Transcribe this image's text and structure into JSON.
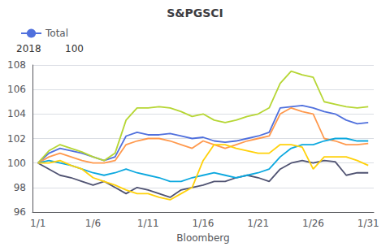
{
  "chart_data": {
    "type": "line",
    "title": "S&PGSCI",
    "xlabel": "Bloomberg",
    "annotations": [
      "2018",
      "100"
    ],
    "categories": [
      "1/1",
      null,
      null,
      null,
      null,
      "1/6",
      null,
      null,
      null,
      null,
      "1/11",
      null,
      null,
      null,
      null,
      "1/16",
      null,
      null,
      null,
      null,
      "1/21",
      null,
      null,
      null,
      null,
      "1/26",
      null,
      null,
      null,
      null,
      "1/31"
    ],
    "series": [
      {
        "name": "Total",
        "values": [
          100,
          100.8,
          101.2,
          101.0,
          100.8,
          100.5,
          100.2,
          100.5,
          102.2,
          102.5,
          102.3,
          102.3,
          102.4,
          102.2,
          102.0,
          102.1,
          101.8,
          101.7,
          101.8,
          102.0,
          102.2,
          102.5,
          104.5,
          104.6,
          104.7,
          104.5,
          104.2,
          104.0,
          103.5,
          103.2,
          103.3
        ]
      },
      {
        "values": [
          100,
          101.0,
          101.5,
          101.2,
          100.9,
          100.5,
          100.2,
          100.8,
          103.5,
          104.5,
          104.5,
          104.6,
          104.5,
          104.2,
          103.8,
          104.0,
          103.5,
          103.3,
          103.5,
          103.8,
          104.0,
          104.5,
          106.5,
          107.5,
          107.2,
          107.0,
          105.0,
          104.8,
          104.6,
          104.5,
          104.6
        ]
      },
      {
        "values": [
          100,
          99.5,
          99.0,
          98.8,
          98.5,
          98.2,
          98.5,
          98.0,
          97.5,
          98.0,
          97.8,
          97.5,
          97.2,
          97.8,
          98.0,
          98.2,
          98.5,
          98.5,
          98.8,
          99.0,
          98.8,
          98.5,
          99.5,
          100.0,
          100.2,
          100.0,
          100.2,
          100.1,
          99.0,
          99.2,
          99.2
        ]
      },
      {
        "values": [
          100,
          100.5,
          100.8,
          100.5,
          100.2,
          100.0,
          100.0,
          100.2,
          101.5,
          101.8,
          102.0,
          102.0,
          101.8,
          101.5,
          101.2,
          101.8,
          101.5,
          101.2,
          101.5,
          101.8,
          102.0,
          102.2,
          104.0,
          104.5,
          104.2,
          104.0,
          102.0,
          101.8,
          101.5,
          101.5,
          101.6
        ]
      },
      {
        "values": [
          100,
          100.2,
          100.0,
          99.8,
          99.5,
          99.2,
          99.0,
          99.2,
          99.5,
          99.2,
          99.0,
          98.8,
          98.5,
          98.5,
          98.8,
          99.0,
          99.2,
          99.0,
          98.8,
          99.0,
          99.2,
          99.5,
          100.5,
          101.2,
          101.5,
          101.5,
          101.8,
          102.0,
          102.0,
          101.8,
          101.8
        ]
      },
      {
        "values": [
          100,
          100.0,
          100.2,
          99.8,
          99.5,
          98.8,
          98.5,
          98.2,
          97.8,
          97.5,
          97.5,
          97.2,
          97.0,
          97.5,
          98.0,
          100.2,
          101.5,
          101.5,
          101.2,
          101.0,
          100.8,
          100.8,
          101.5,
          101.5,
          101.3,
          99.5,
          100.5,
          100.5,
          100.5,
          100.2,
          99.8
        ]
      }
    ],
    "ylim": [
      96,
      108
    ],
    "yticks": [
      96,
      98,
      100,
      102,
      104,
      106,
      108
    ],
    "grid": true,
    "legend": "top"
  }
}
